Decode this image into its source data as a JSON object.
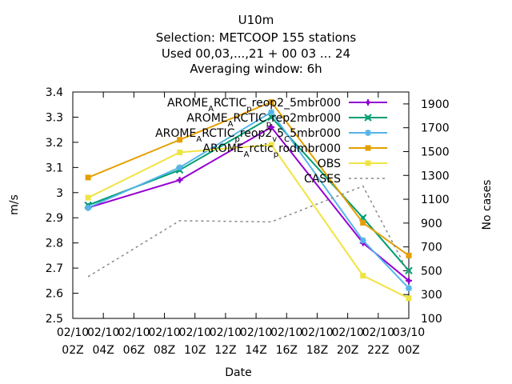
{
  "chart_data": {
    "type": "line",
    "title_lines": [
      "U10m",
      "Selection: METCOOP    155 stations",
      "Used  00,03,...,21  + 00 03 ... 24",
      "Averaging window:  6h"
    ],
    "xlabel": "Date",
    "ylabel": "m/s",
    "y2label": "No cases",
    "x_tick_labels": [
      [
        "02/10",
        "02Z"
      ],
      [
        "02/10",
        "04Z"
      ],
      [
        "02/10",
        "06Z"
      ],
      [
        "02/10",
        "08Z"
      ],
      [
        "02/10",
        "10Z"
      ],
      [
        "02/10",
        "12Z"
      ],
      [
        "02/10",
        "14Z"
      ],
      [
        "02/10",
        "16Z"
      ],
      [
        "02/10",
        "18Z"
      ],
      [
        "02/10",
        "20Z"
      ],
      [
        "02/10",
        "22Z"
      ],
      [
        "03/10",
        "00Z"
      ]
    ],
    "x_tick_hours": [
      2,
      4,
      6,
      8,
      10,
      12,
      14,
      16,
      18,
      20,
      22,
      24
    ],
    "xlim": [
      2,
      24
    ],
    "ylim": [
      2.5,
      3.4
    ],
    "y_ticks": [
      2.5,
      2.6,
      2.7,
      2.8,
      2.9,
      3.0,
      3.1,
      3.2,
      3.3,
      3.4
    ],
    "y_tick_labels": [
      "2.5",
      "2.6",
      "2.7",
      "2.8",
      "2.9",
      "3",
      "3.1",
      "3.2",
      "3.3",
      "3.4"
    ],
    "y2lim": [
      100,
      2000
    ],
    "y2_ticks": [
      100,
      300,
      500,
      700,
      900,
      1100,
      1300,
      1500,
      1700,
      1900
    ],
    "y2_tick_labels": [
      "100",
      "300",
      "500",
      "700",
      "900",
      "1100",
      "1300",
      "1500",
      "1700",
      "1900"
    ],
    "grid": false,
    "legend_position": "top-right",
    "series": [
      {
        "name": "AROME_ARCTIC_prep2_5mbr000",
        "legend_parts": [
          [
            "AROME",
            ""
          ],
          [
            "A",
            "sub"
          ],
          [
            "RCTIC",
            ""
          ],
          [
            "p",
            "sub"
          ],
          [
            "reop2",
            ""
          ],
          [
            "_5mbr000",
            ""
          ]
        ],
        "color": "#9400d3",
        "marker": "plus",
        "axis": "y1",
        "x": [
          3,
          9,
          15,
          21,
          24
        ],
        "y": [
          2.94,
          3.05,
          3.26,
          2.8,
          2.65
        ]
      },
      {
        "name": "AROME_ARCTIC_prep2mbr000",
        "legend_parts": [
          [
            "AROME",
            ""
          ],
          [
            "A",
            "sub"
          ],
          [
            "RCTIC",
            ""
          ],
          [
            "p",
            "sub"
          ],
          [
            "rep2mbr000",
            ""
          ]
        ],
        "color": "#009e73",
        "marker": "x",
        "axis": "y1",
        "x": [
          3,
          9,
          15,
          21,
          24
        ],
        "y": [
          2.95,
          3.09,
          3.3,
          2.9,
          2.69
        ]
      },
      {
        "name": "AROME_ARCTIC_prep2_v5_C5mbr000",
        "legend_parts": [
          [
            "AROME",
            ""
          ],
          [
            "A",
            "sub"
          ],
          [
            "RCTIC",
            ""
          ],
          [
            "p",
            "sub"
          ],
          [
            "reop2",
            ""
          ],
          [
            "v",
            "sub"
          ],
          [
            "5",
            ""
          ],
          [
            "C",
            "sub"
          ],
          [
            "5mbr000",
            ""
          ]
        ],
        "color": "#56b4e9",
        "marker": "star",
        "axis": "y1",
        "x": [
          3,
          9,
          15,
          21,
          24
        ],
        "y": [
          2.94,
          3.1,
          3.32,
          2.81,
          2.62
        ]
      },
      {
        "name": "AROME_Arctic_prodmbr000",
        "legend_parts": [
          [
            "AROME",
            ""
          ],
          [
            "A",
            "sub"
          ],
          [
            "rctic",
            ""
          ],
          [
            "p",
            "sub"
          ],
          [
            "rodmbr000",
            ""
          ]
        ],
        "color": "#e69f00",
        "marker": "square",
        "axis": "y1",
        "x": [
          3,
          9,
          15,
          21,
          24
        ],
        "y": [
          3.06,
          3.21,
          3.36,
          2.88,
          2.75
        ]
      },
      {
        "name": "OBS",
        "legend_parts": [
          [
            "OBS",
            ""
          ]
        ],
        "color": "#f0e442",
        "marker": "square",
        "axis": "y1",
        "x": [
          3,
          9,
          15,
          21,
          24
        ],
        "y": [
          2.98,
          3.16,
          3.19,
          2.67,
          2.58
        ]
      },
      {
        "name": "CASES",
        "legend_parts": [
          [
            "CASES",
            ""
          ]
        ],
        "color": "#888888",
        "marker": "none",
        "dashed": true,
        "axis": "y2",
        "x": [
          3,
          9,
          15,
          21,
          24
        ],
        "y": [
          450,
          920,
          910,
          1210,
          480
        ]
      }
    ]
  }
}
